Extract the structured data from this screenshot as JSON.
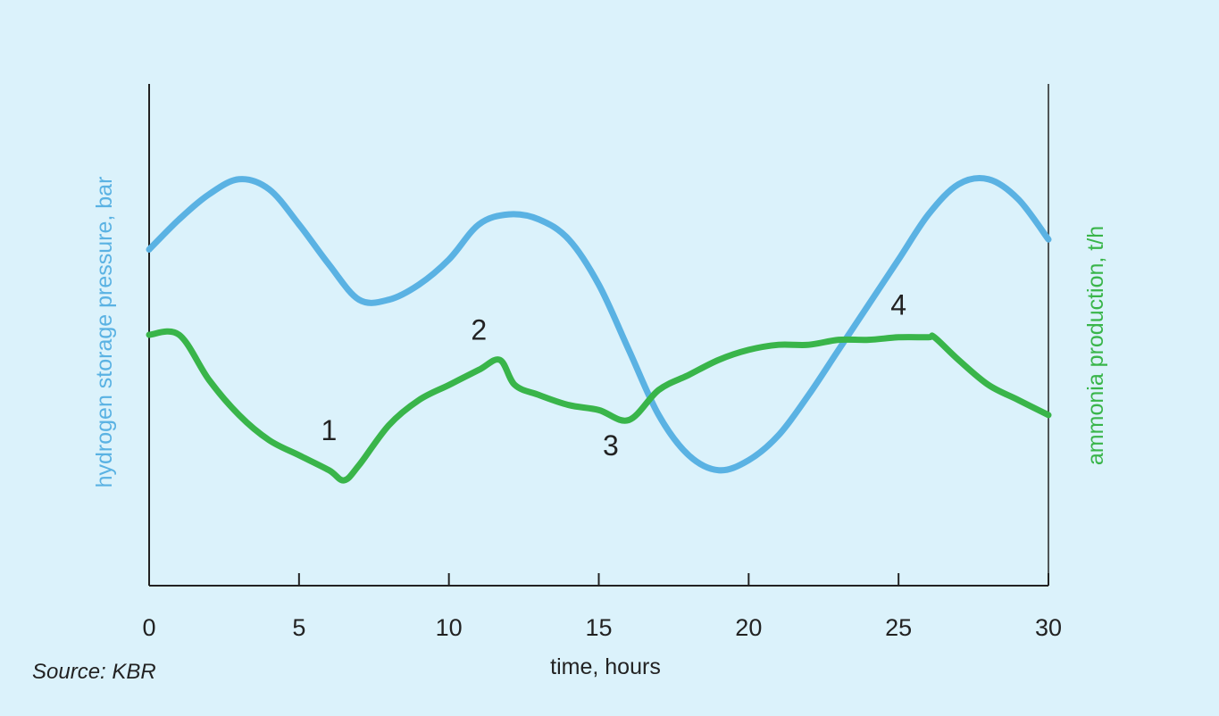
{
  "colors": {
    "background": "#dbf2fb",
    "hydrogen": "#5ab2e3",
    "ammonia": "#39b54a",
    "axis": "#222222"
  },
  "source_text": "Source: KBR",
  "chart_data": {
    "type": "line",
    "xlabel": "time, hours",
    "ylabel_left": "hydrogen storage pressure, bar",
    "ylabel_right": "ammonia production, t/h",
    "xlim": [
      0,
      30
    ],
    "ylim": [
      0,
      100
    ],
    "x_ticks": [
      0,
      5,
      10,
      15,
      20,
      25,
      30
    ],
    "y_ticks": [],
    "grid": false,
    "series": [
      {
        "name": "hydrogen storage pressure, bar",
        "axis": "left",
        "x": [
          0,
          1,
          2,
          3,
          4,
          5,
          6,
          7,
          8,
          9,
          10,
          11,
          12,
          13,
          14,
          15,
          16,
          17,
          18,
          19,
          20,
          21,
          22,
          23,
          24,
          25,
          26,
          27,
          28,
          29,
          30
        ],
        "values": [
          67,
          73,
          78,
          81,
          79,
          72,
          64,
          57,
          57,
          60,
          65,
          72,
          74,
          73,
          69,
          60,
          47,
          34,
          26,
          23,
          25,
          30,
          38,
          47,
          56,
          65,
          74,
          80,
          81,
          77,
          69
        ]
      },
      {
        "name": "ammonia production, t/h",
        "axis": "right",
        "x": [
          0,
          1,
          2,
          3,
          4,
          5,
          6,
          6.5,
          7,
          8,
          9,
          10,
          11,
          11.7,
          12.2,
          13,
          14,
          15,
          16,
          17,
          18,
          19,
          20,
          21,
          22,
          23,
          24,
          25,
          26,
          26.2,
          27,
          28,
          29,
          30
        ],
        "values": [
          50,
          50,
          41,
          34,
          29,
          26,
          23,
          21,
          24,
          32,
          37,
          40,
          43,
          45,
          40,
          38,
          36,
          35,
          33,
          39,
          42,
          45,
          47,
          48,
          48,
          49,
          49,
          49.5,
          49.5,
          49.5,
          45,
          40,
          37,
          34
        ]
      }
    ],
    "annotations": [
      {
        "text": "1",
        "x": 6.0,
        "y": 29
      },
      {
        "text": "2",
        "x": 11.0,
        "y": 49
      },
      {
        "text": "3",
        "x": 15.4,
        "y": 26
      },
      {
        "text": "4",
        "x": 25.0,
        "y": 54
      }
    ]
  }
}
